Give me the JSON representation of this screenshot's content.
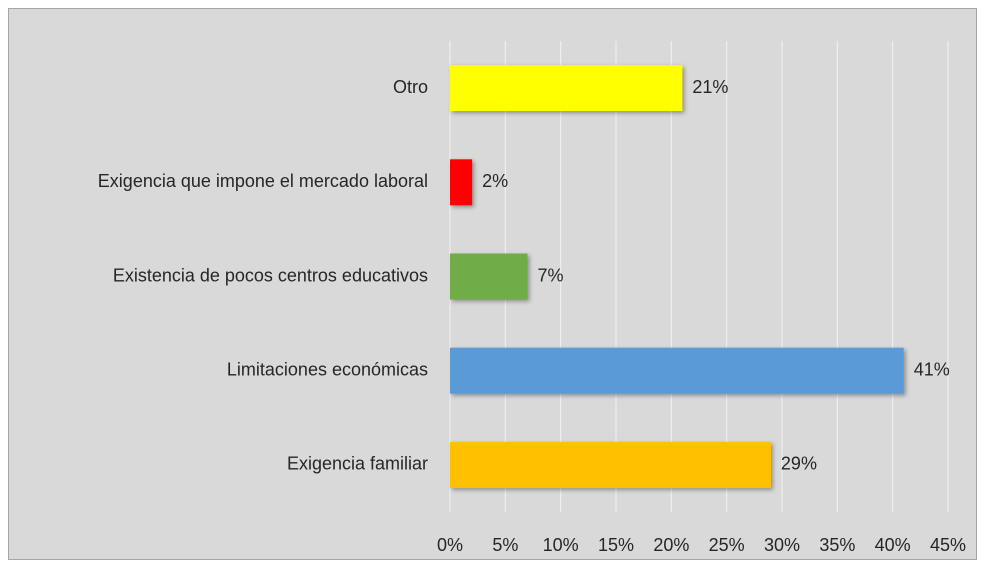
{
  "chart_data": {
    "type": "bar",
    "orientation": "horizontal",
    "categories": [
      "Otro",
      "Exigencia que impone el mercado laboral",
      "Existencia de pocos centros educativos",
      "Limitaciones económicas",
      "Exigencia familiar"
    ],
    "values": [
      21,
      2,
      7,
      41,
      29
    ],
    "value_labels": [
      "21%",
      "2%",
      "7%",
      "41%",
      "29%"
    ],
    "colors": [
      "#ffff00",
      "#ff0000",
      "#70ad47",
      "#5b9bd5",
      "#ffc000"
    ],
    "xlim": [
      0,
      45
    ],
    "xticks": [
      {
        "value": 0,
        "label": "0%"
      },
      {
        "value": 5,
        "label": "5%"
      },
      {
        "value": 10,
        "label": "10%"
      },
      {
        "value": 15,
        "label": "15%"
      },
      {
        "value": 20,
        "label": "20%"
      },
      {
        "value": 25,
        "label": "25%"
      },
      {
        "value": 30,
        "label": "30%"
      },
      {
        "value": 35,
        "label": "35%"
      },
      {
        "value": 40,
        "label": "40%"
      },
      {
        "value": 45,
        "label": "45%"
      }
    ],
    "grid": true
  }
}
